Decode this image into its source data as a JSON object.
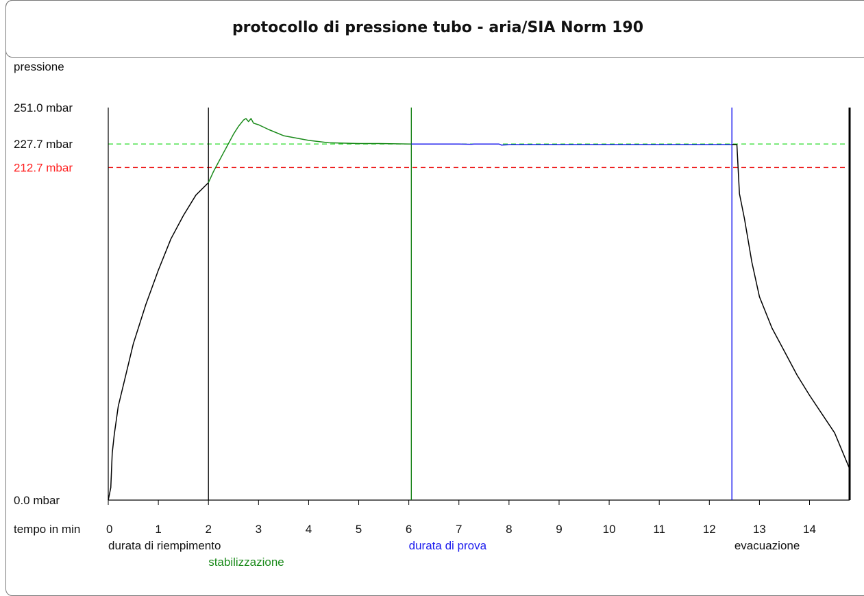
{
  "title": "protocollo di pressione tubo - aria/SIA Norm 190",
  "chart_data": {
    "type": "line",
    "title": "protocollo di pressione tubo - aria/SIA Norm 190",
    "ylabel": "pressione",
    "xlabel": "tempo in min",
    "x_unit_suffix": "",
    "y_unit": "mbar",
    "xlim": [
      0,
      14.8
    ],
    "ylim": [
      0,
      251.0
    ],
    "x_ticks": [
      "0",
      "1",
      "2",
      "3",
      "4",
      "5",
      "6",
      "7",
      "8",
      "9",
      "10",
      "11",
      "12",
      "13",
      "14"
    ],
    "y_tick_labels": [
      {
        "value": 251.0,
        "label": "251.0 mbar",
        "color": "#111111"
      },
      {
        "value": 227.7,
        "label": "227.7 mbar",
        "color": "#111111"
      },
      {
        "value": 212.7,
        "label": "212.7 mbar",
        "color": "#ff2020"
      },
      {
        "value": 0.0,
        "label": "0.0 mbar",
        "color": "#111111"
      }
    ],
    "reference_lines": [
      {
        "value": 227.7,
        "color": "#33dd33",
        "style": "dashed"
      },
      {
        "value": 212.7,
        "color": "#ee2222",
        "style": "dashed"
      }
    ],
    "phase_lines": [
      {
        "x": 2.0,
        "color": "#000000"
      },
      {
        "x": 6.05,
        "color": "#007700"
      },
      {
        "x": 12.45,
        "color": "#0000ee"
      },
      {
        "x": 14.8,
        "color": "#000000"
      }
    ],
    "phase_labels": [
      {
        "text": "durata di riempimento",
        "x": 0.0,
        "row": 1,
        "color": "#111111"
      },
      {
        "text": "stabilizzazione",
        "x": 2.0,
        "row": 2,
        "color": "#1a8a1a"
      },
      {
        "text": "durata di prova",
        "x": 6.0,
        "row": 1,
        "color": "#1a1aee"
      },
      {
        "text": "evacuazione",
        "x": 12.5,
        "row": 1,
        "color": "#111111"
      }
    ],
    "series": [
      {
        "phase": "riempimento",
        "color": "#000000",
        "x": [
          0.0,
          0.05,
          0.08,
          0.12,
          0.2,
          0.35,
          0.5,
          0.75,
          1.0,
          1.25,
          1.5,
          1.75,
          2.0
        ],
        "y": [
          0,
          8,
          30,
          42,
          60,
          80,
          100,
          125,
          147,
          167,
          182,
          195,
          203
        ]
      },
      {
        "phase": "stabilizzazione",
        "color": "#1a8a1a",
        "x": [
          2.0,
          2.1,
          2.2,
          2.3,
          2.4,
          2.5,
          2.6,
          2.7,
          2.75,
          2.8,
          2.85,
          2.9,
          3.0,
          3.2,
          3.5,
          4.0,
          4.4,
          5.0,
          5.4,
          6.05
        ],
        "y": [
          203,
          210,
          216,
          222,
          228,
          234,
          239,
          243,
          244,
          242,
          244,
          241,
          240,
          237,
          233,
          230,
          228.5,
          228,
          228,
          227.7
        ]
      },
      {
        "phase": "prova",
        "color": "#1a1aee",
        "x": [
          6.05,
          7.0,
          7.25,
          7.3,
          7.8,
          7.85,
          8.0,
          10.0,
          12.0,
          12.45
        ],
        "y": [
          227.7,
          227.7,
          227.5,
          227.7,
          227.7,
          227.0,
          227.2,
          227.2,
          227.2,
          227.2
        ]
      },
      {
        "phase": "evacuazione",
        "color": "#000000",
        "x": [
          12.45,
          12.55,
          12.6,
          12.7,
          12.85,
          13.0,
          13.25,
          13.5,
          13.75,
          14.0,
          14.25,
          14.5,
          14.8
        ],
        "y": [
          227.2,
          227.2,
          196,
          180,
          152,
          130,
          110,
          95,
          80,
          67,
          55,
          43,
          20
        ]
      }
    ]
  }
}
